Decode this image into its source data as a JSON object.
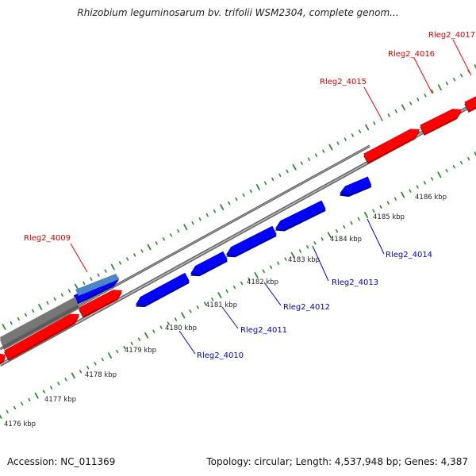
{
  "title": "Rhizobium leguminosarum bv. trifolii WSM2304, complete genom...",
  "footer": {
    "accession": "Accession: NC_011369",
    "summary": "Topology: circular; Length: 4,537,948 bp; Genes: 4,387"
  },
  "colors": {
    "forward_gene": "#ff0000",
    "forward_gene_dark": "#b00000",
    "reverse_gene": "#0000ff",
    "reverse_gene_dark": "#000090",
    "genome_line": "#888888",
    "tick_dots": "#2e8b2e",
    "forward_label": "#dd0000",
    "reverse_label": "#0000cc",
    "pointer_forward": "#ff0000",
    "pointer_reverse": "#0000ff",
    "ruler_label": "#222222"
  },
  "ruler": {
    "labels": [
      "4176 kbp",
      "4177 kbp",
      "4178 kbp",
      "4179 kbp",
      "4180 kbp",
      "4181 kbp",
      "4182 kbp",
      "4183 kbp",
      "4184 kbp",
      "4185 kbp",
      "4186 kbp"
    ]
  },
  "genes": {
    "forward": [
      "Rleg2_4009",
      "Rleg2_4015",
      "Rleg2_4016",
      "Rleg2_4017"
    ],
    "reverse": [
      "Rleg2_4010",
      "Rleg2_4011",
      "Rleg2_4012",
      "Rleg2_4013",
      "Rleg2_4014"
    ]
  }
}
